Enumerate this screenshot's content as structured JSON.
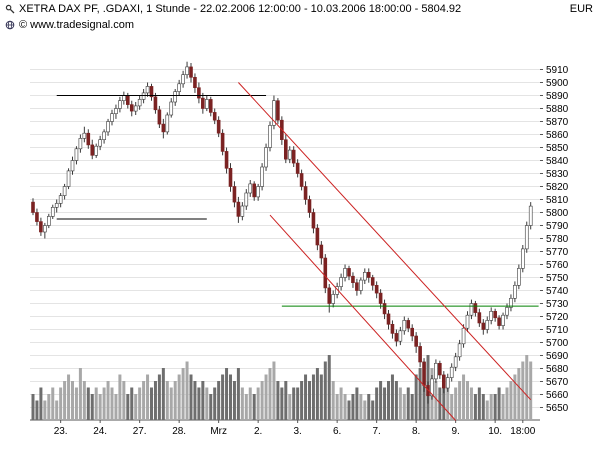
{
  "header": {
    "title": "XETRA DAX PF, .GDAXI, 1 Stunde - 22.02.2006 12:00:00 - 10.03.2006 18:00:00 - 5804.92",
    "currency": "EUR",
    "copyright": "© www.tradesignal.com"
  },
  "chart_data": {
    "type": "candlestick",
    "instrument": "XETRA DAX PF",
    "symbol": ".GDAXI",
    "interval": "1 Stunde",
    "period_start": "22.02.2006 12:00:00",
    "period_end": "10.03.2006 18:00:00",
    "last_price": 5804.92,
    "y_axis": {
      "min": 5650,
      "max": 5910,
      "step": 10,
      "unit": "EUR"
    },
    "x_labels": [
      {
        "label": "23.",
        "index": 7
      },
      {
        "label": "24.",
        "index": 17
      },
      {
        "label": "27.",
        "index": 27
      },
      {
        "label": "28.",
        "index": 37
      },
      {
        "label": "Mrz",
        "index": 47
      },
      {
        "label": "2.",
        "index": 57
      },
      {
        "label": "3.",
        "index": 67
      },
      {
        "label": "6.",
        "index": 77
      },
      {
        "label": "7.",
        "index": 87
      },
      {
        "label": "8.",
        "index": 97
      },
      {
        "label": "9.",
        "index": 107
      },
      {
        "label": "10.",
        "index": 117
      },
      {
        "label": "18:00",
        "index": 124
      }
    ],
    "candle_format": [
      "open",
      "high",
      "low",
      "close",
      "volume"
    ],
    "candles": [
      [
        5808,
        5811,
        5798,
        5800,
        4
      ],
      [
        5800,
        5803,
        5790,
        5793,
        3
      ],
      [
        5793,
        5796,
        5782,
        5785,
        5
      ],
      [
        5785,
        5792,
        5780,
        5790,
        3
      ],
      [
        5790,
        5799,
        5788,
        5797,
        4
      ],
      [
        5797,
        5806,
        5795,
        5804,
        5
      ],
      [
        5804,
        5810,
        5800,
        5807,
        3
      ],
      [
        5807,
        5815,
        5804,
        5813,
        5
      ],
      [
        5813,
        5822,
        5810,
        5820,
        6
      ],
      [
        5820,
        5834,
        5818,
        5832,
        7
      ],
      [
        5832,
        5843,
        5829,
        5840,
        6
      ],
      [
        5840,
        5851,
        5837,
        5849,
        5
      ],
      [
        5849,
        5860,
        5846,
        5857,
        8
      ],
      [
        5857,
        5866,
        5854,
        5861,
        6
      ],
      [
        5861,
        5864,
        5849,
        5852,
        5
      ],
      [
        5852,
        5856,
        5841,
        5844,
        4
      ],
      [
        5844,
        5853,
        5842,
        5851,
        5
      ],
      [
        5851,
        5859,
        5848,
        5856,
        4
      ],
      [
        5856,
        5864,
        5853,
        5862,
        5
      ],
      [
        5862,
        5872,
        5859,
        5870,
        6
      ],
      [
        5870,
        5879,
        5867,
        5876,
        5
      ],
      [
        5876,
        5883,
        5872,
        5880,
        4
      ],
      [
        5880,
        5889,
        5877,
        5886,
        7
      ],
      [
        5886,
        5893,
        5883,
        5890,
        6
      ],
      [
        5890,
        5892,
        5880,
        5883,
        4
      ],
      [
        5883,
        5886,
        5874,
        5878,
        5
      ],
      [
        5878,
        5885,
        5875,
        5882,
        4
      ],
      [
        5882,
        5890,
        5879,
        5887,
        5
      ],
      [
        5887,
        5895,
        5884,
        5892,
        6
      ],
      [
        5892,
        5900,
        5889,
        5897,
        7
      ],
      [
        5897,
        5899,
        5886,
        5889,
        5
      ],
      [
        5889,
        5892,
        5876,
        5879,
        6
      ],
      [
        5879,
        5882,
        5865,
        5868,
        7
      ],
      [
        5868,
        5872,
        5857,
        5862,
        8
      ],
      [
        5862,
        5877,
        5860,
        5875,
        6
      ],
      [
        5875,
        5888,
        5873,
        5885,
        5
      ],
      [
        5885,
        5895,
        5882,
        5893,
        6
      ],
      [
        5893,
        5902,
        5890,
        5899,
        7
      ],
      [
        5899,
        5909,
        5896,
        5906,
        8
      ],
      [
        5906,
        5916,
        5903,
        5912,
        9
      ],
      [
        5912,
        5915,
        5900,
        5904,
        7
      ],
      [
        5904,
        5907,
        5892,
        5896,
        6
      ],
      [
        5896,
        5900,
        5884,
        5888,
        5
      ],
      [
        5888,
        5892,
        5876,
        5880,
        6
      ],
      [
        5880,
        5890,
        5878,
        5887,
        5
      ],
      [
        5887,
        5889,
        5874,
        5877,
        4
      ],
      [
        5877,
        5880,
        5868,
        5871,
        5
      ],
      [
        5871,
        5874,
        5858,
        5861,
        6
      ],
      [
        5861,
        5864,
        5844,
        5847,
        7
      ],
      [
        5847,
        5850,
        5830,
        5834,
        8
      ],
      [
        5834,
        5838,
        5816,
        5820,
        7
      ],
      [
        5820,
        5824,
        5804,
        5808,
        6
      ],
      [
        5808,
        5812,
        5792,
        5797,
        8
      ],
      [
        5797,
        5808,
        5794,
        5805,
        5
      ],
      [
        5805,
        5818,
        5802,
        5815,
        4
      ],
      [
        5815,
        5825,
        5812,
        5822,
        5
      ],
      [
        5822,
        5824,
        5809,
        5812,
        4
      ],
      [
        5812,
        5822,
        5809,
        5820,
        5
      ],
      [
        5820,
        5838,
        5817,
        5835,
        6
      ],
      [
        5835,
        5853,
        5832,
        5850,
        7
      ],
      [
        5850,
        5870,
        5847,
        5867,
        8
      ],
      [
        5867,
        5890,
        5864,
        5886,
        9
      ],
      [
        5886,
        5888,
        5868,
        5871,
        6
      ],
      [
        5871,
        5874,
        5852,
        5856,
        5
      ],
      [
        5856,
        5860,
        5838,
        5841,
        6
      ],
      [
        5841,
        5851,
        5838,
        5848,
        4
      ],
      [
        5848,
        5851,
        5835,
        5838,
        5
      ],
      [
        5838,
        5841,
        5827,
        5830,
        5
      ],
      [
        5830,
        5833,
        5817,
        5820,
        6
      ],
      [
        5820,
        5824,
        5806,
        5810,
        7
      ],
      [
        5810,
        5813,
        5796,
        5800,
        6
      ],
      [
        5800,
        5803,
        5784,
        5788,
        7
      ],
      [
        5788,
        5791,
        5771,
        5775,
        8
      ],
      [
        5775,
        5778,
        5760,
        5765,
        7
      ],
      [
        5765,
        5768,
        5738,
        5742,
        9
      ],
      [
        5742,
        5745,
        5723,
        5730,
        10
      ],
      [
        5730,
        5740,
        5727,
        5737,
        6
      ],
      [
        5737,
        5746,
        5734,
        5743,
        4
      ],
      [
        5743,
        5753,
        5740,
        5750,
        5
      ],
      [
        5750,
        5760,
        5747,
        5757,
        4
      ],
      [
        5757,
        5759,
        5748,
        5751,
        3
      ],
      [
        5751,
        5754,
        5742,
        5746,
        4
      ],
      [
        5746,
        5749,
        5736,
        5740,
        5
      ],
      [
        5740,
        5750,
        5737,
        5748,
        4
      ],
      [
        5748,
        5757,
        5745,
        5754,
        3
      ],
      [
        5754,
        5757,
        5746,
        5750,
        4
      ],
      [
        5750,
        5752,
        5740,
        5744,
        3
      ],
      [
        5744,
        5747,
        5734,
        5738,
        5
      ],
      [
        5738,
        5741,
        5726,
        5730,
        6
      ],
      [
        5730,
        5733,
        5718,
        5722,
        5
      ],
      [
        5722,
        5725,
        5710,
        5714,
        6
      ],
      [
        5714,
        5717,
        5703,
        5707,
        7
      ],
      [
        5707,
        5710,
        5697,
        5701,
        6
      ],
      [
        5701,
        5712,
        5698,
        5709,
        5
      ],
      [
        5709,
        5720,
        5706,
        5717,
        4
      ],
      [
        5717,
        5719,
        5708,
        5711,
        5
      ],
      [
        5711,
        5714,
        5701,
        5705,
        4
      ],
      [
        5705,
        5708,
        5692,
        5697,
        7
      ],
      [
        5697,
        5700,
        5681,
        5685,
        8
      ],
      [
        5685,
        5688,
        5662,
        5667,
        9
      ],
      [
        5667,
        5670,
        5653,
        5659,
        10
      ],
      [
        5659,
        5675,
        5656,
        5672,
        8
      ],
      [
        5672,
        5687,
        5669,
        5684,
        6
      ],
      [
        5684,
        5686,
        5672,
        5675,
        5
      ],
      [
        5675,
        5678,
        5661,
        5665,
        7
      ],
      [
        5665,
        5676,
        5662,
        5673,
        5
      ],
      [
        5673,
        5684,
        5670,
        5681,
        4
      ],
      [
        5681,
        5692,
        5678,
        5689,
        5
      ],
      [
        5689,
        5702,
        5686,
        5699,
        6
      ],
      [
        5699,
        5714,
        5696,
        5711,
        7
      ],
      [
        5711,
        5724,
        5708,
        5721,
        6
      ],
      [
        5721,
        5733,
        5718,
        5730,
        5
      ],
      [
        5730,
        5732,
        5720,
        5723,
        4
      ],
      [
        5723,
        5726,
        5712,
        5715,
        5
      ],
      [
        5715,
        5718,
        5706,
        5710,
        4
      ],
      [
        5710,
        5720,
        5707,
        5717,
        3
      ],
      [
        5717,
        5727,
        5714,
        5724,
        4
      ],
      [
        5724,
        5726,
        5716,
        5719,
        4
      ],
      [
        5719,
        5721,
        5710,
        5713,
        5
      ],
      [
        5713,
        5723,
        5710,
        5721,
        4
      ],
      [
        5721,
        5730,
        5718,
        5727,
        5
      ],
      [
        5727,
        5737,
        5724,
        5734,
        6
      ],
      [
        5734,
        5747,
        5731,
        5744,
        7
      ],
      [
        5744,
        5760,
        5741,
        5757,
        8
      ],
      [
        5757,
        5775,
        5754,
        5772,
        9
      ],
      [
        5772,
        5793,
        5769,
        5790,
        10
      ],
      [
        5790,
        5808,
        5787,
        5804.92,
        9
      ]
    ],
    "overlays": {
      "resistance_line": {
        "price": 5890,
        "start_index": 6,
        "end_index": 59,
        "color": "#000000"
      },
      "support_line": {
        "price": 5795,
        "start_index": 6,
        "end_index": 44,
        "color": "#000000"
      },
      "horizontal_green_line": {
        "price": 5728,
        "start_index": 63,
        "end_index": 128,
        "color": "#008000"
      },
      "channel_upper": {
        "from": {
          "index": 52,
          "price": 5900
        },
        "to": {
          "index": 126,
          "price": 5656
        },
        "color": "#cc2222"
      },
      "channel_lower": {
        "from": {
          "index": 60,
          "price": 5798
        },
        "to": {
          "index": 107,
          "price": 5640
        },
        "color": "#cc2222"
      }
    },
    "colors": {
      "up": "#ffffff",
      "down": "#7b2222",
      "wick": "#3a3a3a",
      "volume_up": "#a8a8a8",
      "volume_down": "#6e6e6e",
      "grid": "#e4e4e4",
      "axis": "#555555",
      "channel": "#cc2222",
      "level": "#000000",
      "green": "#008000"
    },
    "legend_position": "none",
    "grid": true
  }
}
